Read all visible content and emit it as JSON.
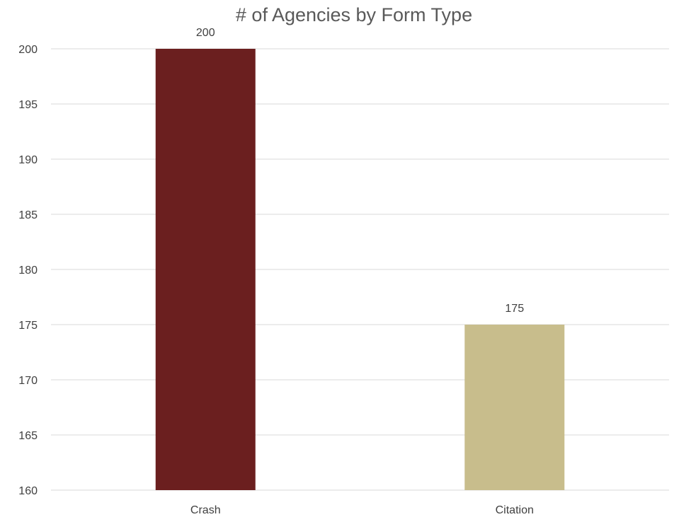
{
  "chart_data": {
    "type": "bar",
    "title": "# of Agencies by Form Type",
    "categories": [
      "Crash",
      "Citation"
    ],
    "values": [
      200,
      175
    ],
    "data_labels": [
      "200",
      "175"
    ],
    "bar_colors": [
      "#6b1f1f",
      "#c8bd8c"
    ],
    "ylim": [
      160,
      200
    ],
    "yticks": [
      "160",
      "165",
      "170",
      "175",
      "180",
      "185",
      "190",
      "195",
      "200"
    ],
    "xlabel": "",
    "ylabel": "",
    "grid": true,
    "legend": "none"
  }
}
